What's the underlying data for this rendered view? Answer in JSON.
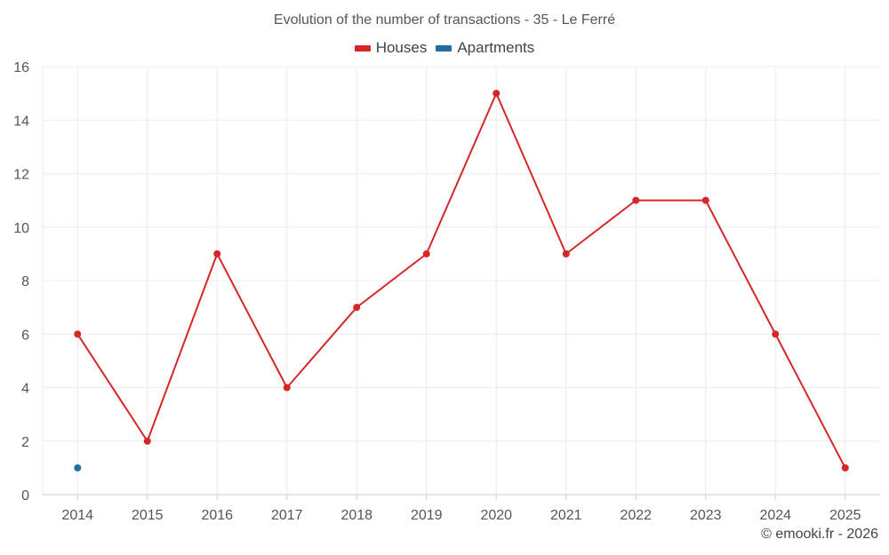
{
  "chart_data": {
    "type": "line",
    "title": "Evolution of the number of transactions - 35 - Le Ferré",
    "categories": [
      "2014",
      "2015",
      "2016",
      "2017",
      "2018",
      "2019",
      "2020",
      "2021",
      "2022",
      "2023",
      "2024",
      "2025"
    ],
    "series": [
      {
        "name": "Houses",
        "color": "#d62728",
        "values": [
          6,
          2,
          9,
          4,
          7,
          9,
          15,
          9,
          11,
          11,
          6,
          1
        ]
      },
      {
        "name": "Apartments",
        "color": "#1f6f9f",
        "values": [
          1,
          null,
          null,
          null,
          null,
          null,
          null,
          null,
          null,
          null,
          null,
          null
        ]
      }
    ],
    "ylim": [
      0,
      16
    ],
    "yticks": [
      0,
      2,
      4,
      6,
      8,
      10,
      12,
      14,
      16
    ],
    "xlabel": "",
    "ylabel": "",
    "grid": true,
    "legend_position": "top-center"
  },
  "credit": "© emooki.fr - 2026"
}
